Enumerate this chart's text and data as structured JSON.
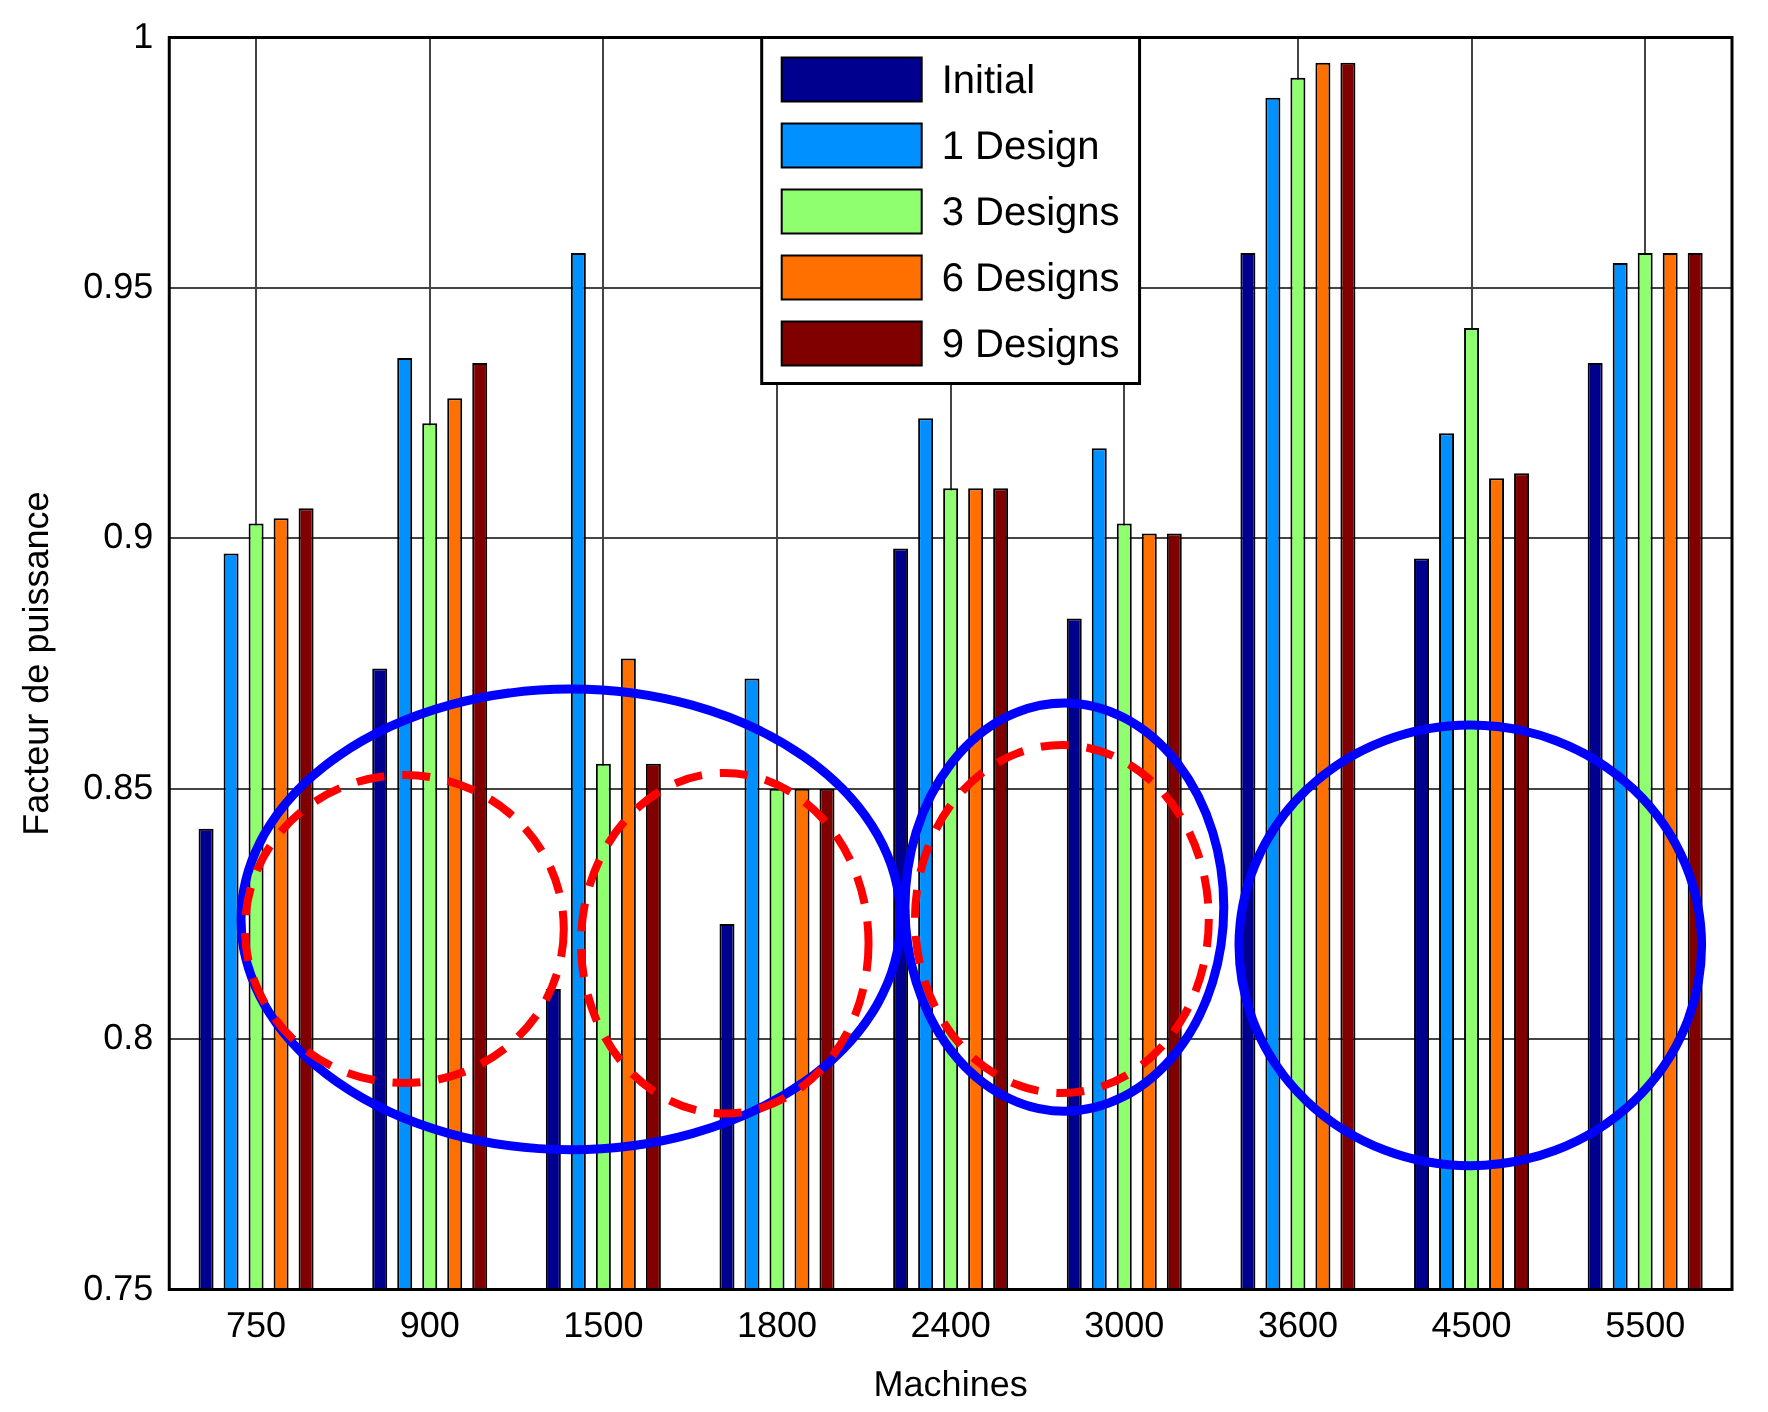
{
  "chart_data": {
    "type": "bar",
    "xlabel": "Machines",
    "ylabel": "Facteur de puissance",
    "categories": [
      "750",
      "900",
      "1500",
      "1800",
      "2400",
      "3000",
      "3600",
      "4500",
      "5500"
    ],
    "series": [
      {
        "name": "Initial",
        "color": "#00008f",
        "values": [
          0.842,
          0.874,
          0.81,
          0.823,
          0.898,
          0.884,
          0.957,
          0.896,
          0.935
        ]
      },
      {
        "name": "1 Design",
        "color": "#0090ff",
        "values": [
          0.897,
          0.936,
          0.957,
          0.872,
          0.924,
          0.918,
          0.988,
          0.921,
          0.955
        ]
      },
      {
        "name": "3 Designs",
        "color": "#8fff70",
        "values": [
          0.903,
          0.923,
          0.855,
          0.85,
          0.91,
          0.903,
          0.992,
          0.942,
          0.957
        ]
      },
      {
        "name": "6 Designs",
        "color": "#ff7000",
        "values": [
          0.904,
          0.928,
          0.876,
          0.85,
          0.91,
          0.901,
          0.995,
          0.912,
          0.957
        ]
      },
      {
        "name": "9 Designs",
        "color": "#800000",
        "values": [
          0.906,
          0.935,
          0.855,
          0.85,
          0.91,
          0.901,
          0.995,
          0.913,
          0.957
        ]
      }
    ],
    "ylim": [
      0.75,
      1
    ],
    "yticks": [
      0.75,
      0.8,
      0.85,
      0.9,
      0.95,
      1
    ],
    "grid": true,
    "legend": "top"
  }
}
